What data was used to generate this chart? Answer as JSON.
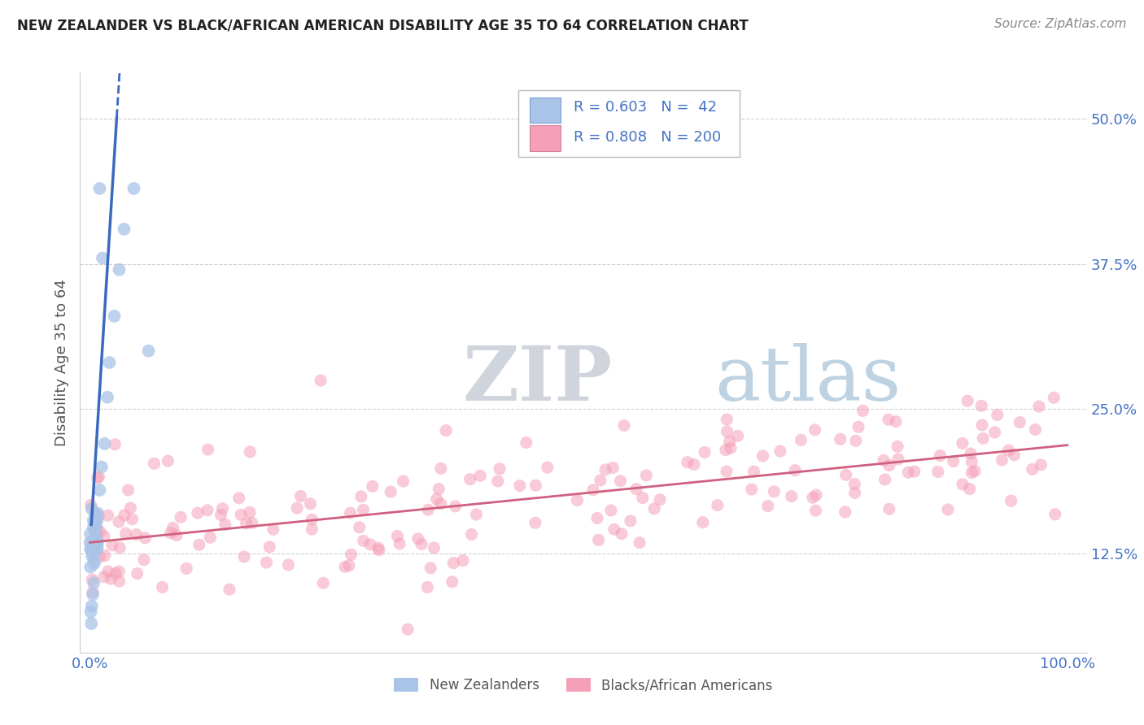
{
  "title": "NEW ZEALANDER VS BLACK/AFRICAN AMERICAN DISABILITY AGE 35 TO 64 CORRELATION CHART",
  "source": "Source: ZipAtlas.com",
  "ylabel": "Disability Age 35 to 64",
  "color_nz": "#aac4e8",
  "color_nz_line": "#3a6abf",
  "color_baa": "#f5a0b8",
  "color_baa_line": "#d06080",
  "color_text_blue": "#4472c4",
  "color_tick": "#4472c4",
  "background_color": "#ffffff",
  "grid_color": "#cccccc",
  "watermark_zip": "#c8cdd8",
  "watermark_atlas": "#a8c0d8",
  "nz_seed": 7,
  "baa_seed": 42
}
